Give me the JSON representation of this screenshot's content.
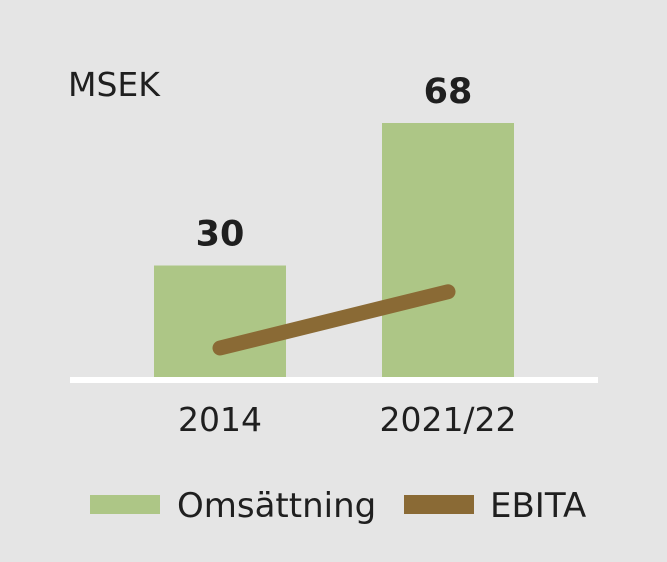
{
  "chart_data": {
    "type": "bar",
    "unit_label": "MSEK",
    "categories": [
      "2014",
      "2021/22"
    ],
    "series": [
      {
        "name": "Omsättning",
        "kind": "bar",
        "values": [
          30,
          68
        ],
        "data_labels": [
          "30",
          "68"
        ]
      },
      {
        "name": "EBITA",
        "kind": "line",
        "values": [
          8,
          23
        ]
      }
    ],
    "ylim": [
      0,
      72
    ],
    "grid": false,
    "legend_position": "bottom",
    "colors": {
      "bar": "#adc686",
      "line": "#8a6a35",
      "axis": "#ffffff",
      "background": "#e5e5e5"
    }
  }
}
